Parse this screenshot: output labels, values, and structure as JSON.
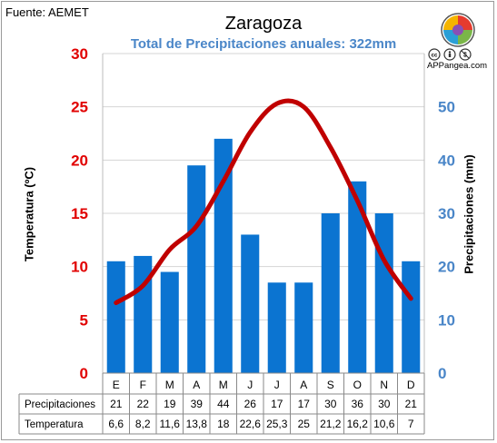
{
  "source": "Fuente: AEMET",
  "brand": {
    "name": "APPangea.com",
    "icon": "appangea-logo-icon",
    "sub_icons": [
      "cc-icon",
      "by-icon",
      "nc-icon"
    ]
  },
  "colors": {
    "bars": "#0b74d1",
    "line": "#c00000",
    "left_axis": "#e10000",
    "right_axis": "#4a86c8"
  },
  "chart_data": {
    "type": "bar+line",
    "title": "Zaragoza",
    "subtitle": "Total de Precipitaciones anuales: 322mm",
    "categories": [
      "E",
      "F",
      "M",
      "A",
      "M",
      "J",
      "J",
      "A",
      "S",
      "O",
      "N",
      "D"
    ],
    "y_left": {
      "label": "Temperatura (ºC)",
      "range": [
        0,
        30
      ],
      "ticks": [
        "0",
        "5",
        "10",
        "15",
        "20",
        "25",
        "30"
      ]
    },
    "y_right": {
      "label": "Precipitaciones (mm)",
      "range": [
        0,
        60
      ],
      "ticks": [
        "0",
        "10",
        "20",
        "30",
        "40",
        "50"
      ]
    },
    "grid": true,
    "series": [
      {
        "name": "Precipitaciones",
        "type": "bar",
        "axis": "right",
        "values": [
          21,
          22,
          19,
          39,
          44,
          26,
          17,
          17,
          30,
          36,
          30,
          21
        ],
        "labels": [
          "21",
          "22",
          "19",
          "39",
          "44",
          "26",
          "17",
          "17",
          "30",
          "36",
          "30",
          "21"
        ]
      },
      {
        "name": "Temperatura",
        "type": "line",
        "axis": "left",
        "values": [
          6.6,
          8.2,
          11.6,
          13.8,
          18,
          22.6,
          25.3,
          25,
          21.2,
          16.2,
          10.6,
          7
        ],
        "labels": [
          "6,6",
          "8,2",
          "11,6",
          "13,8",
          "18",
          "22,6",
          "25,3",
          "25",
          "21,2",
          "16,2",
          "10,6",
          "7"
        ]
      }
    ]
  }
}
